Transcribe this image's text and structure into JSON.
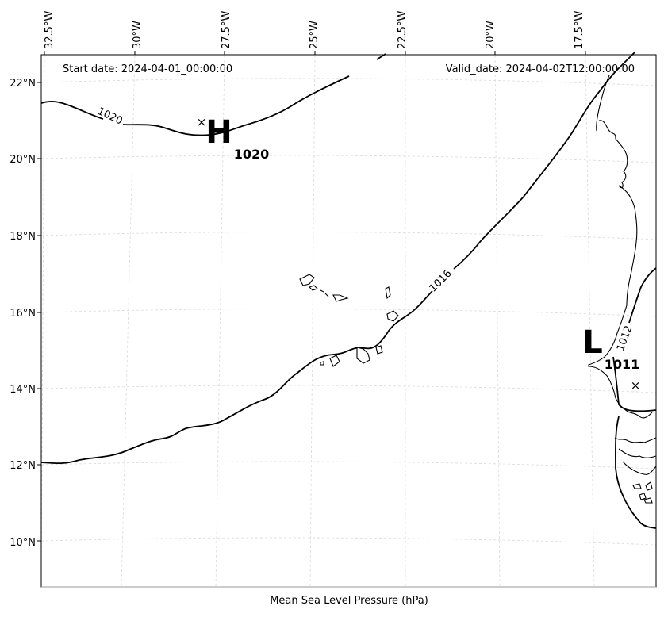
{
  "header": {
    "start_date": "Start date: 2024-04-01_00:00:00",
    "valid_date": "Valid_date: 2024-04-02T12:00:00.00"
  },
  "map": {
    "title": "Mean Sea Level Pressure (hPa)",
    "lon_ticks": [
      "32.5°W",
      "30°W",
      "27.5°W",
      "25°W",
      "22.5°W",
      "20°W",
      "17.5°W"
    ],
    "lat_ticks": [
      "22°N",
      "20°N",
      "18°N",
      "16°N",
      "14°N",
      "12°N",
      "10°N"
    ],
    "isobar_labels": [
      "1020",
      "1016",
      "1012"
    ],
    "high": {
      "symbol": "H",
      "value": "1020"
    },
    "low": {
      "symbol": "L",
      "value": "1011"
    },
    "marker": "×"
  }
}
